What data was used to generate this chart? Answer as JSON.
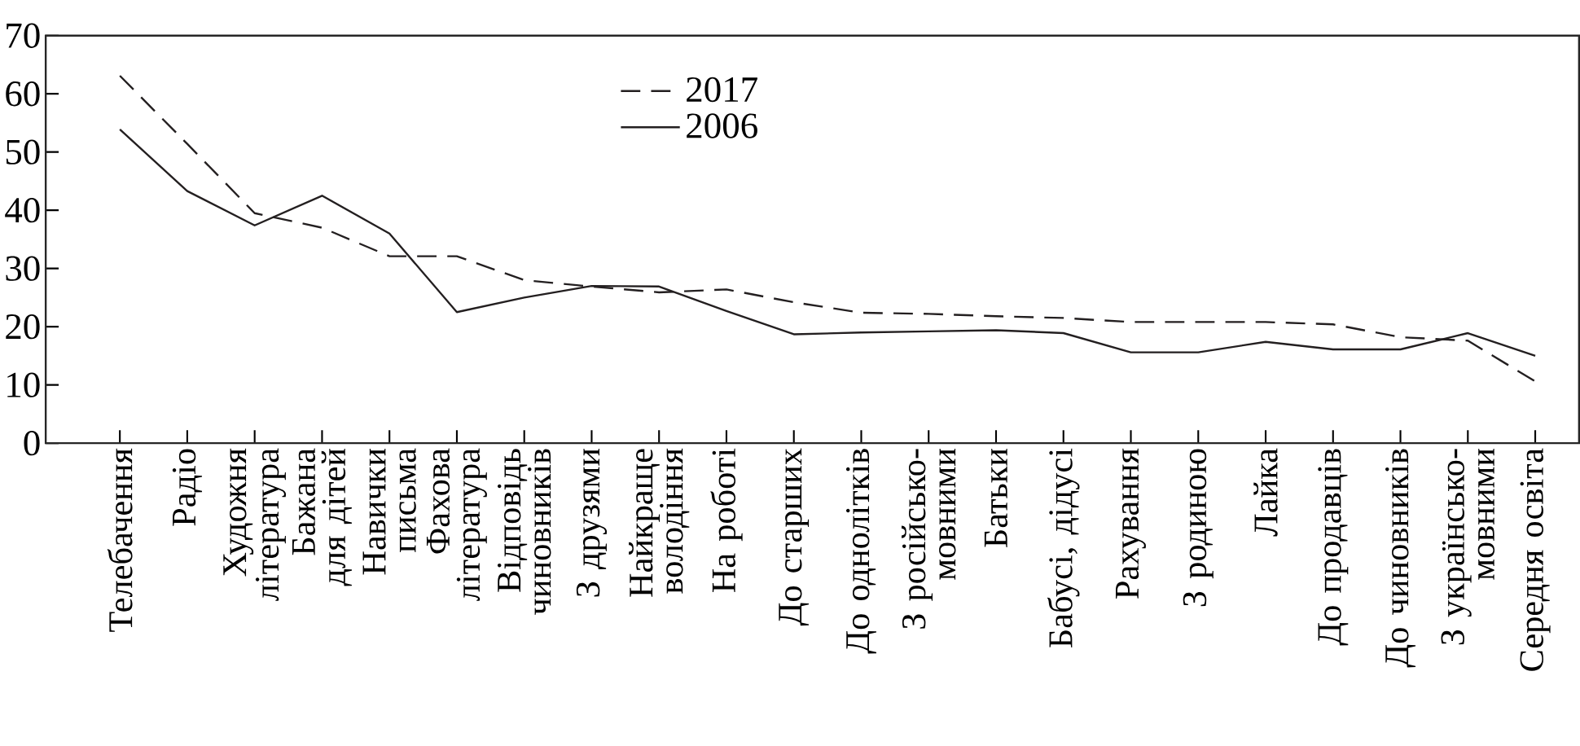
{
  "chart_data": {
    "type": "line",
    "categories": [
      "Телебачення",
      "Радіо",
      "Художня література",
      "Бажана для дітей",
      "Навички письма",
      "Фахова література",
      "Відповідь чиновників",
      "З друзями",
      "Найкраще володіння",
      "На роботі",
      "До старших",
      "До однолітків",
      "З російсько-мовними",
      "Батьки",
      "Бабусі, дідусі",
      "Рахування",
      "З родиною",
      "Лайка",
      "До продавців",
      "До чиновників",
      "З українсько-мовними",
      "Середня освіта"
    ],
    "series": [
      {
        "name": "2017",
        "color": "#231f20",
        "line_style": "dashed",
        "values": [
          63.1,
          51.4,
          39.5,
          37,
          32.1,
          32.1,
          28,
          26.9,
          25.9,
          26.4,
          24.2,
          22.4,
          22.2,
          21.8,
          21.5,
          20.8,
          20.8,
          20.8,
          20.4,
          18.2,
          17.6,
          10.6
        ]
      },
      {
        "name": "2006",
        "color": "#231f20",
        "line_style": "solid",
        "values": [
          53.9,
          43.3,
          37.4,
          42.5,
          36,
          22.5,
          25,
          27,
          26.9,
          22.7,
          18.7,
          19,
          19.2,
          19.4,
          18.9,
          15.6,
          15.6,
          17.4,
          16.1,
          16.1,
          18.9,
          15
        ]
      }
    ],
    "ylim": [
      0,
      70
    ],
    "yticks": [
      0,
      10,
      20,
      30,
      40,
      50,
      60,
      70
    ],
    "legend": "top",
    "grid": false,
    "marker": "none"
  }
}
